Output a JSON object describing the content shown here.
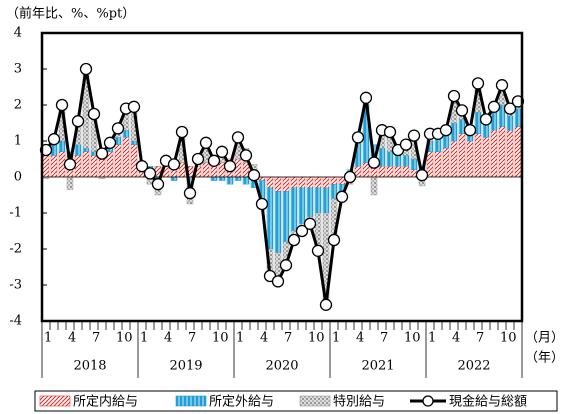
{
  "chart_data": {
    "type": "bar",
    "stacked": true,
    "ylabel": "（前年比、%、%pt）",
    "ylim": [
      -4,
      4
    ],
    "yticks": [
      -4,
      -3,
      -2,
      -1,
      0,
      1,
      2,
      3,
      4
    ],
    "categories": [
      "1",
      null,
      null,
      "4",
      null,
      null,
      "7",
      null,
      null,
      "10",
      null,
      null,
      "1",
      null,
      null,
      "4",
      null,
      null,
      "7",
      null,
      null,
      "10",
      null,
      null,
      "1",
      null,
      null,
      "4",
      null,
      null,
      "7",
      null,
      null,
      "10",
      null,
      null,
      "1",
      null,
      null,
      "4",
      null,
      null,
      "7",
      null,
      null,
      "10",
      null,
      null,
      "1",
      null,
      null,
      "4",
      null,
      null,
      "7",
      null,
      null,
      "10",
      null,
      null
    ],
    "year_labels": [
      "2018",
      "2019",
      "2020",
      "2021",
      "2022"
    ],
    "x_unit_labels": [
      "（月）",
      "（年）"
    ],
    "series": [
      {
        "name": "所定内給与",
        "color": "#d9322b",
        "pattern": "hatch",
        "values": [
          0.7,
          0.6,
          0.7,
          0.6,
          0.6,
          0.7,
          0.6,
          0.6,
          0.7,
          0.9,
          1.1,
          0.9,
          0.3,
          0.2,
          0.3,
          0.4,
          0.3,
          0.4,
          0.3,
          0.3,
          0.4,
          0.3,
          0.4,
          0.3,
          0.5,
          0.4,
          0.2,
          -0.1,
          -0.3,
          -0.4,
          -0.4,
          -0.3,
          -0.3,
          -0.3,
          -0.3,
          -0.3,
          -0.2,
          -0.2,
          0.1,
          0.3,
          0.4,
          0.3,
          0.3,
          0.3,
          0.3,
          0.3,
          0.2,
          0.2,
          0.7,
          0.7,
          0.8,
          1.0,
          1.2,
          1.0,
          1.2,
          1.1,
          1.3,
          1.4,
          1.3,
          1.4
        ]
      },
      {
        "name": "所定外給与",
        "color": "#1f9fd4",
        "pattern": "vlines",
        "values": [
          0.1,
          0.3,
          0.3,
          0.1,
          0.3,
          0.1,
          0.1,
          0.1,
          0.1,
          0.2,
          0.2,
          0.1,
          0.0,
          0.1,
          -0.1,
          0.0,
          -0.1,
          0.0,
          -0.2,
          0.0,
          0.0,
          -0.1,
          -0.1,
          -0.2,
          -0.1,
          -0.2,
          -0.3,
          -0.6,
          -1.7,
          -1.7,
          -1.4,
          -1.2,
          -1.0,
          -0.8,
          -0.7,
          -0.7,
          -0.4,
          -0.2,
          0.1,
          0.7,
          1.6,
          0.6,
          0.5,
          0.4,
          0.4,
          0.3,
          0.3,
          0.1,
          0.3,
          0.4,
          0.4,
          0.5,
          0.4,
          0.3,
          0.6,
          0.4,
          0.5,
          0.6,
          0.4,
          0.5
        ]
      },
      {
        "name": "特別給与",
        "color": "#9a9a9a",
        "pattern": "dots",
        "values": [
          -0.05,
          0.15,
          1.0,
          -0.35,
          0.65,
          2.2,
          1.05,
          -0.05,
          0.15,
          0.25,
          0.6,
          0.95,
          0.0,
          -0.2,
          -0.4,
          0.05,
          0.15,
          0.85,
          -0.55,
          0.2,
          0.55,
          0.25,
          0.4,
          0.2,
          0.7,
          0.4,
          0.15,
          -0.05,
          -0.75,
          -0.8,
          -0.65,
          -0.25,
          -0.2,
          -0.2,
          -1.05,
          -2.55,
          -1.15,
          -0.15,
          -0.2,
          0.1,
          0.2,
          -0.5,
          0.5,
          0.55,
          0.05,
          0.3,
          0.65,
          -0.25,
          0.2,
          0.1,
          0.1,
          0.75,
          0.25,
          0.0,
          0.8,
          0.1,
          0.15,
          0.55,
          0.2,
          0.2
        ]
      },
      {
        "name": "現金給与総額",
        "color": "#000000",
        "type": "line",
        "values": [
          0.75,
          1.05,
          2.0,
          0.35,
          1.55,
          3.0,
          1.75,
          0.65,
          0.95,
          1.35,
          1.9,
          1.95,
          0.3,
          0.1,
          -0.2,
          0.45,
          0.35,
          1.25,
          -0.45,
          0.5,
          0.95,
          0.45,
          0.7,
          0.3,
          1.1,
          0.6,
          0.05,
          -0.75,
          -2.75,
          -2.9,
          -2.45,
          -1.75,
          -1.5,
          -1.3,
          -2.05,
          -3.55,
          -1.75,
          -0.55,
          0.0,
          1.1,
          2.2,
          0.4,
          1.3,
          1.25,
          0.75,
          0.9,
          1.15,
          0.05,
          1.2,
          1.2,
          1.3,
          2.25,
          1.85,
          1.3,
          2.6,
          1.6,
          1.95,
          2.55,
          1.9,
          2.1
        ]
      }
    ]
  }
}
